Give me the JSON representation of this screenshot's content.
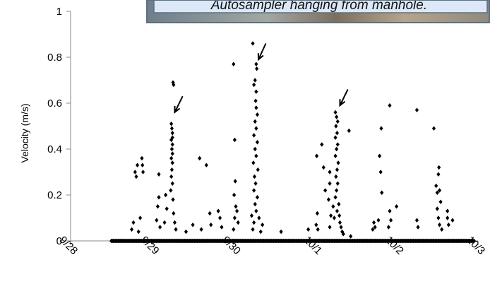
{
  "chart_data": {
    "type": "scatter",
    "title": "",
    "xlabel": "",
    "ylabel": "Velocity (m/s)",
    "x_ticks": [
      "9/28",
      "9/29",
      "9/30",
      "10/1",
      "10/2",
      "10/3"
    ],
    "y_ticks": [
      "0",
      "0.2",
      "0.4",
      "0.6",
      "0.8",
      "1"
    ],
    "xlim": [
      "9/28",
      "10/3"
    ],
    "ylim": [
      0,
      1
    ],
    "grid": false,
    "legend": "none",
    "marker_color": "#000000",
    "baseline": {
      "y": 0,
      "x_range": [
        "9/28 12:00",
        "10/2 23:00"
      ]
    },
    "series": [
      {
        "values": [
          [
            "9/28 19:00",
            0.3
          ],
          [
            "9/28 19:20",
            0.28
          ],
          [
            "9/28 19:40",
            0.33
          ],
          [
            "9/28 18:00",
            0.05
          ],
          [
            "9/28 18:30",
            0.08
          ],
          [
            "9/28 21:00",
            0.36
          ],
          [
            "9/28 21:10",
            0.33
          ],
          [
            "9/28 21:20",
            0.3
          ],
          [
            "9/28 20:30",
            0.1
          ],
          [
            "9/28 20:00",
            0.04
          ],
          [
            "9/29 02:00",
            0.29
          ],
          [
            "9/29 02:00",
            0.19
          ],
          [
            "9/29 01:40",
            0.15
          ],
          [
            "9/29 01:20",
            0.09
          ],
          [
            "9/29 02:20",
            0.06
          ],
          [
            "9/29 04:00",
            0.2
          ],
          [
            "9/29 04:20",
            0.14
          ],
          [
            "9/29 03:40",
            0.08
          ],
          [
            "9/29 06:10",
            0.69
          ],
          [
            "9/29 06:20",
            0.68
          ],
          [
            "9/29 05:40",
            0.51
          ],
          [
            "9/29 05:50",
            0.49
          ],
          [
            "9/29 06:00",
            0.47
          ],
          [
            "9/29 06:00",
            0.45
          ],
          [
            "9/29 05:40",
            0.44
          ],
          [
            "9/29 06:00",
            0.42
          ],
          [
            "9/29 05:50",
            0.4
          ],
          [
            "9/29 06:00",
            0.38
          ],
          [
            "9/29 05:40",
            0.36
          ],
          [
            "9/29 06:00",
            0.34
          ],
          [
            "9/29 05:50",
            0.31
          ],
          [
            "9/29 05:40",
            0.28
          ],
          [
            "9/29 06:00",
            0.25
          ],
          [
            "9/29 05:30",
            0.22
          ],
          [
            "9/29 06:10",
            0.18
          ],
          [
            "9/29 06:20",
            0.12
          ],
          [
            "9/29 06:40",
            0.08
          ],
          [
            "9/29 07:00",
            0.05
          ],
          [
            "9/29 10:00",
            0.04
          ],
          [
            "9/29 12:00",
            0.07
          ],
          [
            "9/29 14:00",
            0.36
          ],
          [
            "9/29 16:00",
            0.33
          ],
          [
            "9/29 17:00",
            0.12
          ],
          [
            "9/29 17:20",
            0.07
          ],
          [
            "9/29 14:30",
            0.05
          ],
          [
            "9/29 19:30",
            0.13
          ],
          [
            "9/29 20:00",
            0.1
          ],
          [
            "9/29 20:30",
            0.06
          ],
          [
            "9/30 00:00",
            0.77
          ],
          [
            "9/30 00:20",
            0.44
          ],
          [
            "9/30 00:30",
            0.26
          ],
          [
            "9/30 00:10",
            0.2
          ],
          [
            "9/30 00:40",
            0.15
          ],
          [
            "9/30 00:20",
            0.1
          ],
          [
            "9/30 00:00",
            0.05
          ],
          [
            "9/30 01:00",
            0.13
          ],
          [
            "9/30 01:20",
            0.08
          ],
          [
            "9/30 05:40",
            0.86
          ],
          [
            "9/30 06:40",
            0.77
          ],
          [
            "9/30 06:50",
            0.75
          ],
          [
            "9/30 06:20",
            0.7
          ],
          [
            "9/30 06:00",
            0.68
          ],
          [
            "9/30 06:40",
            0.65
          ],
          [
            "9/30 06:30",
            0.61
          ],
          [
            "9/30 06:40",
            0.58
          ],
          [
            "9/30 07:00",
            0.55
          ],
          [
            "9/30 06:20",
            0.52
          ],
          [
            "9/30 06:40",
            0.49
          ],
          [
            "9/30 06:00",
            0.46
          ],
          [
            "9/30 07:00",
            0.43
          ],
          [
            "9/30 06:20",
            0.4
          ],
          [
            "9/30 06:40",
            0.37
          ],
          [
            "9/30 05:50",
            0.34
          ],
          [
            "9/30 07:10",
            0.31
          ],
          [
            "9/30 06:10",
            0.28
          ],
          [
            "9/30 06:30",
            0.25
          ],
          [
            "9/30 06:00",
            0.22
          ],
          [
            "9/30 07:00",
            0.19
          ],
          [
            "9/30 06:20",
            0.16
          ],
          [
            "9/30 06:40",
            0.13
          ],
          [
            "9/30 07:30",
            0.1
          ],
          [
            "9/30 06:00",
            0.08
          ],
          [
            "9/30 05:40",
            0.05
          ],
          [
            "9/30 08:00",
            0.04
          ],
          [
            "9/30 05:20",
            0.11
          ],
          [
            "9/30 08:30",
            0.07
          ],
          [
            "9/30 14:00",
            0.04
          ],
          [
            "9/30 22:00",
            0.05
          ],
          [
            "10/1 00:30",
            0.37
          ],
          [
            "10/1 00:40",
            0.12
          ],
          [
            "10/1 00:20",
            0.07
          ],
          [
            "10/1 00:50",
            0.05
          ],
          [
            "10/1 02:00",
            0.42
          ],
          [
            "10/1 02:30",
            0.32
          ],
          [
            "10/1 03:00",
            0.22
          ],
          [
            "10/1 04:20",
            0.3
          ],
          [
            "10/1 04:20",
            0.25
          ],
          [
            "10/1 04:00",
            0.18
          ],
          [
            "10/1 04:40",
            0.11
          ],
          [
            "10/1 04:20",
            0.06
          ],
          [
            "10/1 06:00",
            0.56
          ],
          [
            "10/1 06:20",
            0.54
          ],
          [
            "10/1 06:40",
            0.52
          ],
          [
            "10/1 06:10",
            0.5
          ],
          [
            "10/1 06:30",
            0.47
          ],
          [
            "10/1 06:00",
            0.45
          ],
          [
            "10/1 06:40",
            0.42
          ],
          [
            "10/1 06:20",
            0.4
          ],
          [
            "10/1 06:00",
            0.37
          ],
          [
            "10/1 06:50",
            0.34
          ],
          [
            "10/1 06:30",
            0.31
          ],
          [
            "10/1 06:10",
            0.28
          ],
          [
            "10/1 06:40",
            0.25
          ],
          [
            "10/1 06:20",
            0.22
          ],
          [
            "10/1 06:00",
            0.19
          ],
          [
            "10/1 07:00",
            0.16
          ],
          [
            "10/1 06:30",
            0.13
          ],
          [
            "10/1 05:40",
            0.1
          ],
          [
            "10/1 07:20",
            0.08
          ],
          [
            "10/1 07:40",
            0.06
          ],
          [
            "10/1 08:00",
            0.04
          ],
          [
            "10/1 08:20",
            0.03
          ],
          [
            "10/1 05:20",
            0.15
          ],
          [
            "10/1 07:10",
            0.11
          ],
          [
            "10/1 10:00",
            0.48
          ],
          [
            "10/1 10:30",
            0.02
          ],
          [
            "10/1 17:00",
            0.05
          ],
          [
            "10/1 17:20",
            0.08
          ],
          [
            "10/1 17:40",
            0.06
          ],
          [
            "10/1 19:30",
            0.49
          ],
          [
            "10/1 19:00",
            0.37
          ],
          [
            "10/1 19:20",
            0.3
          ],
          [
            "10/1 19:40",
            0.21
          ],
          [
            "10/1 18:40",
            0.09
          ],
          [
            "10/1 22:00",
            0.59
          ],
          [
            "10/1 22:00",
            0.13
          ],
          [
            "10/1 22:20",
            0.09
          ],
          [
            "10/1 21:40",
            0.06
          ],
          [
            "10/2 00:00",
            0.15
          ],
          [
            "10/2 06:00",
            0.57
          ],
          [
            "10/2 06:00",
            0.09
          ],
          [
            "10/2 06:20",
            0.06
          ],
          [
            "10/2 11:00",
            0.49
          ],
          [
            "10/2 11:40",
            0.24
          ],
          [
            "10/2 12:00",
            0.21
          ],
          [
            "10/2 12:30",
            0.32
          ],
          [
            "10/2 12:20",
            0.29
          ],
          [
            "10/2 12:40",
            0.22
          ],
          [
            "10/2 13:00",
            0.17
          ],
          [
            "10/2 12:00",
            0.14
          ],
          [
            "10/2 12:20",
            0.1
          ],
          [
            "10/2 12:40",
            0.07
          ],
          [
            "10/2 13:20",
            0.05
          ],
          [
            "10/2 15:00",
            0.13
          ],
          [
            "10/2 15:00",
            0.1
          ],
          [
            "10/2 15:20",
            0.07
          ],
          [
            "10/2 16:30",
            0.09
          ]
        ]
      }
    ],
    "annotations": [
      {
        "type": "arrow",
        "from": [
          "9/29 09:00",
          0.63
        ],
        "to": [
          "9/29 06:40",
          0.56
        ]
      },
      {
        "type": "arrow",
        "from": [
          "9/30 09:30",
          0.86
        ],
        "to": [
          "9/30 07:20",
          0.79
        ]
      },
      {
        "type": "arrow",
        "from": [
          "10/1 09:40",
          0.66
        ],
        "to": [
          "10/1 07:20",
          0.59
        ]
      }
    ]
  },
  "inset_photo": {
    "caption": "Autosampler hanging from manhole.",
    "frame_color": "#5b7080",
    "caption_bg": "#dce8f7"
  }
}
